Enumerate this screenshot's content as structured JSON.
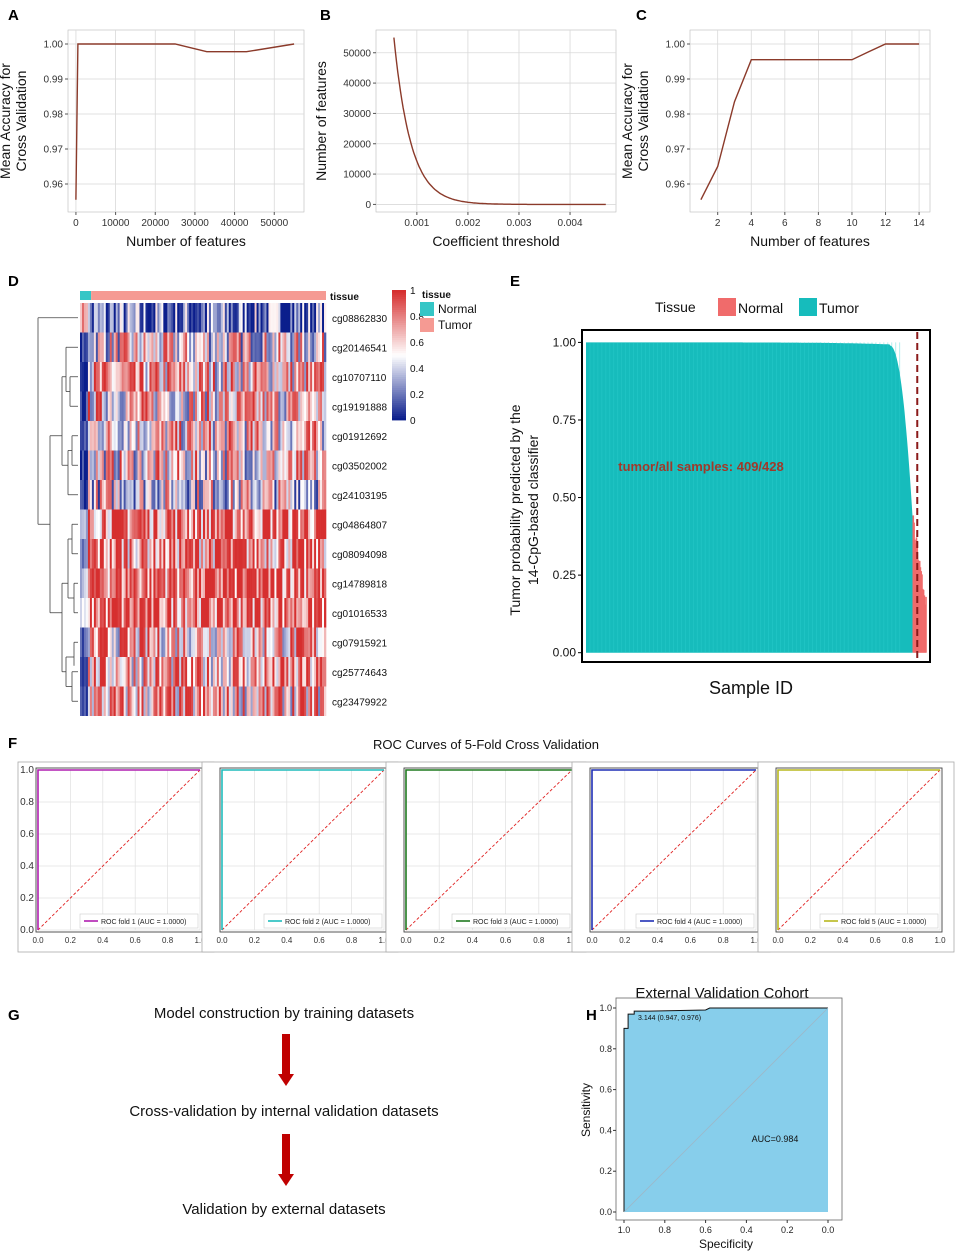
{
  "chart_data": [
    {
      "panel": "A",
      "type": "line",
      "x": [
        0,
        500,
        1000,
        25000,
        33000,
        43000,
        55000
      ],
      "y": [
        0.9555,
        1.0,
        1.0,
        1.0,
        0.9978,
        0.9978,
        1.0
      ],
      "xlim": [
        -2000,
        57500
      ],
      "ylim": [
        0.952,
        1.004
      ],
      "xticks": [
        0,
        10000,
        20000,
        30000,
        40000,
        50000
      ],
      "xtick_labels": [
        "0",
        "10000",
        "20000",
        "30000",
        "40000",
        "50000"
      ],
      "yticks": [
        0.96,
        0.97,
        0.98,
        0.99,
        1.0
      ],
      "ytick_labels": [
        "0.96",
        "0.97",
        "0.98",
        "0.99",
        "1.00"
      ],
      "xlabel": "Number of features",
      "ylabel": [
        "Mean Accuracy for",
        "Cross Validation"
      ],
      "color": "#8b3a2a"
    },
    {
      "panel": "B",
      "type": "line",
      "curve": {
        "x0": 0.00055,
        "x1": 0.0047,
        "y0": 55000,
        "decay": 3000
      },
      "xlim": [
        0.0002,
        0.0049
      ],
      "ylim": [
        -2500,
        57500
      ],
      "xticks": [
        0.001,
        0.002,
        0.003,
        0.004
      ],
      "xtick_labels": [
        "0.001",
        "0.002",
        "0.003",
        "0.004"
      ],
      "yticks": [
        0,
        10000,
        20000,
        30000,
        40000,
        50000
      ],
      "ytick_labels": [
        "0",
        "10000",
        "20000",
        "30000",
        "40000",
        "50000"
      ],
      "xlabel": "Coefficient threshold",
      "ylabel": [
        "Number of features"
      ],
      "color": "#8b3a2a"
    },
    {
      "panel": "C",
      "type": "line",
      "x": [
        1,
        2,
        3,
        4,
        5,
        6,
        7,
        8,
        9,
        10,
        11,
        12,
        13,
        14
      ],
      "y": [
        0.9555,
        0.965,
        0.9835,
        0.9955,
        0.9955,
        0.9955,
        0.9955,
        0.9955,
        0.9955,
        0.9955,
        0.9978,
        1.0,
        1.0,
        1.0
      ],
      "xlim": [
        0.35,
        14.65
      ],
      "ylim": [
        0.952,
        1.004
      ],
      "xticks": [
        2,
        4,
        6,
        8,
        10,
        12,
        14
      ],
      "xtick_labels": [
        "2",
        "4",
        "6",
        "8",
        "10",
        "12",
        "14"
      ],
      "yticks": [
        0.96,
        0.97,
        0.98,
        0.99,
        1.0
      ],
      "ytick_labels": [
        "0.96",
        "0.97",
        "0.98",
        "0.99",
        "1.00"
      ],
      "xlabel": "Number of features",
      "ylabel": [
        "Mean Accuracy for",
        "Cross Validation"
      ],
      "color": "#8b3a2a"
    },
    {
      "panel": "D",
      "type": "heatmap",
      "annotation_label": "tissue",
      "rows": [
        "cg08862830",
        "cg20146541",
        "cg10707110",
        "cg19191888",
        "cg01912692",
        "cg03502002",
        "cg24103195",
        "cg04864807",
        "cg08094098",
        "cg14789818",
        "cg01016533",
        "cg07915921",
        "cg25774643",
        "cg23479922"
      ],
      "row_mean_tumor": [
        0.18,
        0.52,
        0.62,
        0.6,
        0.58,
        0.56,
        0.5,
        0.86,
        0.8,
        0.9,
        0.88,
        0.66,
        0.68,
        0.65
      ],
      "row_mean_normal": [
        0.75,
        0.05,
        0.08,
        0.08,
        0.06,
        0.07,
        0.1,
        0.3,
        0.2,
        0.35,
        0.4,
        0.12,
        0.15,
        0.12
      ],
      "colorbar_ticks": [
        0,
        0.2,
        0.4,
        0.6,
        0.8,
        1
      ],
      "colorbar_tick_labels": [
        "0",
        "0.2",
        "0.4",
        "0.6",
        "0.8",
        "1"
      ],
      "legend_title": "tissue",
      "legend": [
        {
          "name": "Normal",
          "color": "#35c6c6"
        },
        {
          "name": "Tumor",
          "color": "#f59a93"
        }
      ],
      "colors": {
        "low": "#0b1e8c",
        "mid": "#ffffff",
        "high": "#d62f2f"
      }
    },
    {
      "panel": "E",
      "type": "bar",
      "n_samples": 428,
      "n_tumor_predicted": 409,
      "ylim": [
        -0.03,
        1.04
      ],
      "yticks": [
        0.0,
        0.25,
        0.5,
        0.75,
        1.0
      ],
      "ytick_labels": [
        "0.00",
        "0.25",
        "0.50",
        "0.75",
        "1.00"
      ],
      "legend_title": "Tissue",
      "legend": [
        {
          "name": "Normal",
          "color": "#f06b6b"
        },
        {
          "name": "Tumor",
          "color": "#16bcbc"
        }
      ],
      "xlabel": "Sample ID",
      "ylabel": [
        "Tumor probability predicted by the",
        "14-CpG-based classifier"
      ],
      "annotation": "tumor/all samples: 409/428",
      "threshold_sample_index": 411
    },
    {
      "panel": "F",
      "type": "line",
      "title": "ROC Curves of 5-Fold Cross Validation",
      "ticks": [
        0.0,
        0.2,
        0.4,
        0.6,
        0.8,
        1.0
      ],
      "tick_labels": [
        "0.0",
        "0.2",
        "0.4",
        "0.6",
        "0.8",
        "1.0"
      ],
      "series": [
        {
          "name": "ROC fold 1 (AUC = 1.0000)",
          "color": "#b01fb0",
          "x": [
            0,
            0,
            1
          ],
          "y": [
            0,
            1,
            1
          ]
        },
        {
          "name": "ROC fold 2 (AUC = 1.0000)",
          "color": "#1fbcbc",
          "x": [
            0,
            0,
            1
          ],
          "y": [
            0,
            1,
            1
          ]
        },
        {
          "name": "ROC fold 3 (AUC = 1.0000)",
          "color": "#1f7a1f",
          "x": [
            0,
            0,
            1
          ],
          "y": [
            0,
            1,
            1
          ]
        },
        {
          "name": "ROC fold 4 (AUC = 1.0000)",
          "color": "#1f2fb5",
          "x": [
            0,
            0,
            1
          ],
          "y": [
            0,
            1,
            1
          ]
        },
        {
          "name": "ROC fold 5 (AUC = 1.0000)",
          "color": "#b8b81f",
          "x": [
            0,
            0,
            1
          ],
          "y": [
            0,
            1,
            1
          ]
        }
      ],
      "diagonal_color": "#e02020"
    },
    {
      "panel": "H",
      "type": "area",
      "title": "External Validation Cohort",
      "xlabel": "Specificity",
      "ylabel": "Sensitivity",
      "x_specificity": [
        1.0,
        1.0,
        0.98,
        0.98,
        0.95,
        0.95,
        0.88,
        0.6,
        0.58,
        0.05,
        0.04,
        0.0
      ],
      "y_sensitivity": [
        0.0,
        0.9,
        0.9,
        0.97,
        0.97,
        0.985,
        0.985,
        0.99,
        1.0,
        1.0,
        1.0,
        1.0
      ],
      "xticks": [
        1.0,
        0.8,
        0.6,
        0.4,
        0.2,
        0.0
      ],
      "xtick_labels": [
        "1.0",
        "0.8",
        "0.6",
        "0.4",
        "0.2",
        "0.0"
      ],
      "yticks": [
        0.0,
        0.2,
        0.4,
        0.6,
        0.8,
        1.0
      ],
      "ytick_labels": [
        "0.0",
        "0.2",
        "0.4",
        "0.6",
        "0.8",
        "1.0"
      ],
      "threshold_label": "3.144 (0.947, 0.976)",
      "auc_label": "AUC=0.984",
      "fill_color": "#87ceeb"
    }
  ],
  "panels": {
    "labels": [
      "A",
      "B",
      "C",
      "D",
      "E",
      "F",
      "G",
      "H"
    ]
  },
  "flowchart": {
    "steps": [
      "Model construction by training datasets",
      "Cross-validation by internal validation datasets",
      "Validation by external datasets"
    ],
    "arrow_color": "#c00000"
  }
}
